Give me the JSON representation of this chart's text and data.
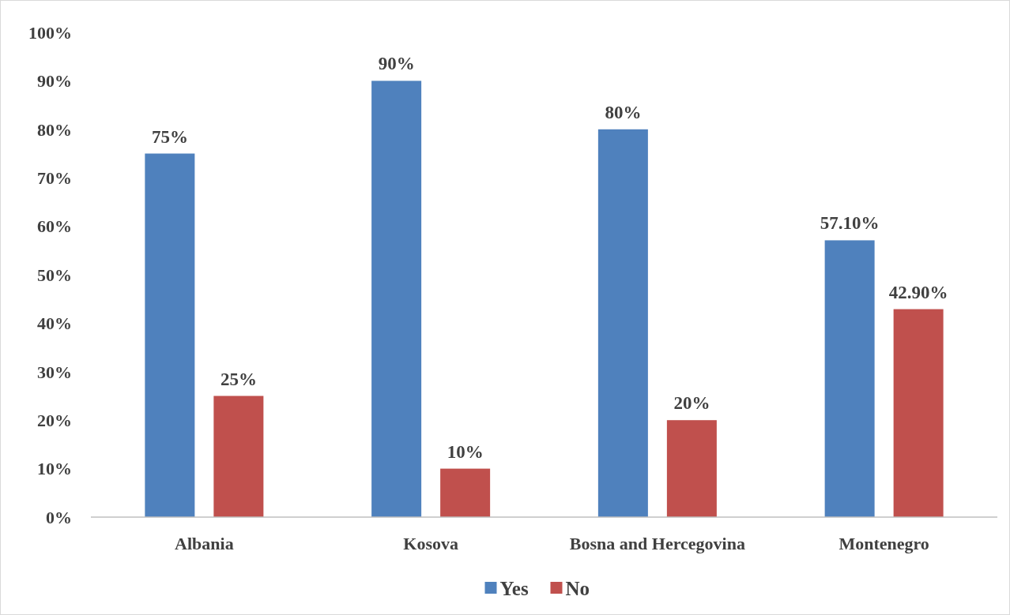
{
  "chart_data": {
    "type": "bar",
    "categories": [
      "Albania",
      "Kosova",
      "Bosna and Hercegovina",
      "Montenegro"
    ],
    "series": [
      {
        "name": "Yes",
        "color": "#4f81bd",
        "values": [
          75,
          90,
          80,
          57.1
        ],
        "value_labels": [
          "75%",
          "90%",
          "80%",
          "57.10%"
        ]
      },
      {
        "name": "No",
        "color": "#c0504d",
        "values": [
          25,
          10,
          20,
          42.9
        ],
        "value_labels": [
          "25%",
          "10%",
          "20%",
          "42.90%"
        ]
      }
    ],
    "ylim": [
      0,
      100
    ],
    "yticks": [
      {
        "value": 0,
        "label": "0%"
      },
      {
        "value": 10,
        "label": "10%"
      },
      {
        "value": 20,
        "label": "20%"
      },
      {
        "value": 30,
        "label": "30%"
      },
      {
        "value": 40,
        "label": "40%"
      },
      {
        "value": 50,
        "label": "50%"
      },
      {
        "value": 60,
        "label": "60%"
      },
      {
        "value": 70,
        "label": "70%"
      },
      {
        "value": 80,
        "label": "80%"
      },
      {
        "value": 90,
        "label": "90%"
      },
      {
        "value": 100,
        "label": "100%"
      }
    ],
    "grid": false,
    "legend": "bottom"
  }
}
